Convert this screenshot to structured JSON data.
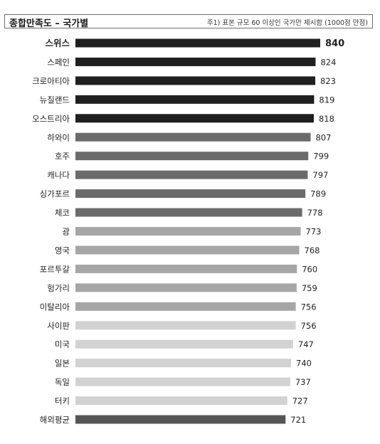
{
  "header": {
    "title": "종합만족도 – 국가별",
    "note": "주1) 표본 규모 60 이상인 국가만 제시함 (1000점 만점)"
  },
  "colors": {
    "highest": "#1f1f1f",
    "high": "#6b6b6b",
    "mid": "#a6a6a6",
    "low": "#d2d2d2",
    "average": "#555555"
  },
  "chart_data": {
    "type": "bar",
    "orientation": "horizontal",
    "title": "종합만족도 – 국가별",
    "xlabel": "",
    "ylabel": "",
    "grid": false,
    "legend": "none",
    "xlim": [
      0,
      840
    ],
    "categories": [
      "스위스",
      "스페인",
      "크로아티아",
      "뉴질랜드",
      "오스트리아",
      "하와이",
      "호주",
      "캐나다",
      "싱가포르",
      "체코",
      "괌",
      "영국",
      "포르투갈",
      "헝가리",
      "이탈리아",
      "사이판",
      "미국",
      "일본",
      "독일",
      "터키",
      "해외평균"
    ],
    "values": [
      840,
      824,
      823,
      819,
      818,
      807,
      799,
      797,
      789,
      778,
      773,
      768,
      760,
      759,
      756,
      756,
      747,
      740,
      737,
      727,
      721
    ],
    "color_groups": [
      "highest",
      "highest",
      "highest",
      "highest",
      "highest",
      "high",
      "high",
      "high",
      "high",
      "high",
      "mid",
      "mid",
      "mid",
      "mid",
      "mid",
      "low",
      "low",
      "low",
      "low",
      "low",
      "average"
    ]
  }
}
